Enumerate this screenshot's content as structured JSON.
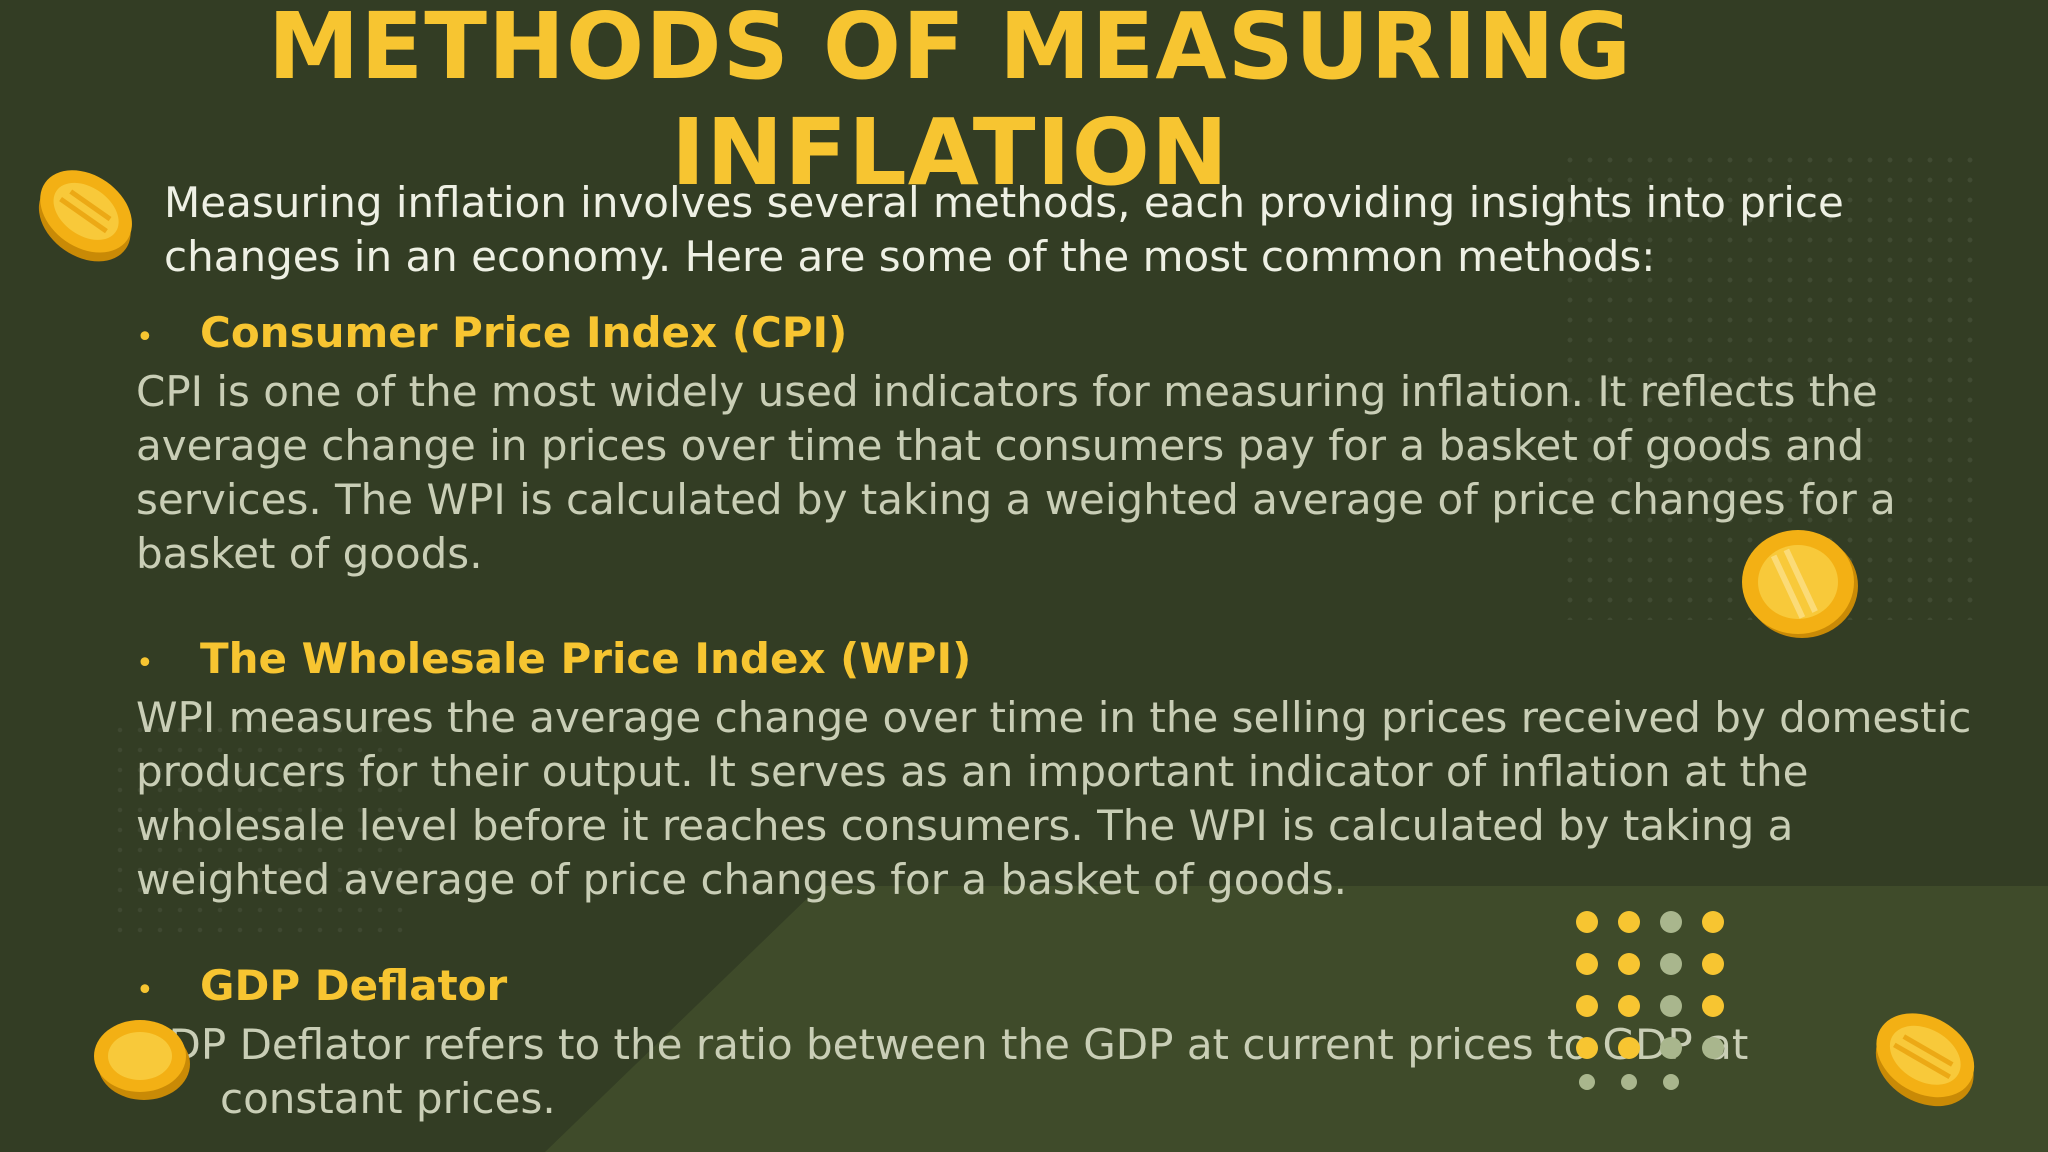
{
  "slide": {
    "title": "METHODS OF MEASURING INFLATION",
    "intro": "Measuring inflation involves several methods, each providing insights into price changes in an economy. Here are some of the most common methods:",
    "bullet_glyph": "•",
    "sections": [
      {
        "heading": "Consumer Price Index (CPI)",
        "body": "CPI is one of the most widely used indicators for measuring inflation. It reflects the average change in prices over time that consumers pay for a basket of goods and services. The WPI is calculated by taking a weighted average of price changes for a basket of goods."
      },
      {
        "heading": "The Wholesale Price Index (WPI)",
        "body": "WPI measures the average change over time in the selling prices received by domestic producers for their output. It serves as an important indicator of inflation at the wholesale level before it reaches consumers. The WPI is calculated by taking a weighted average of price changes for a basket of goods."
      },
      {
        "heading": "GDP Deflator",
        "body_line1": "GDP Deflator refers to the ratio between the GDP at current prices to GDP at",
        "body_line2": "constant prices."
      }
    ]
  },
  "colors": {
    "background": "#333d24",
    "background_lower": "#3f4b2a",
    "accent_yellow": "#f7c531",
    "intro_text": "#eef0e4",
    "body_text": "#c9ceb6",
    "coin": "#f3b014",
    "dot_sage": "#a9b68d"
  },
  "icons": [
    "coin-icon",
    "dot-pattern"
  ]
}
